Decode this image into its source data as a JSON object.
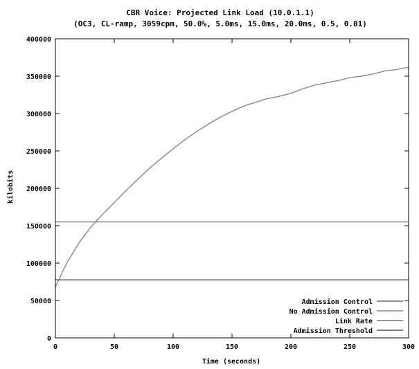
{
  "chart_data": {
    "type": "line",
    "title": "CBR Voice: Projected Link Load (10.0.1.1)",
    "subtitle": "(OC3, CL-ramp, 3059cpm, 50.0%, 5.0ms, 15.0ms, 20.0ms, 0.5, 0.01)",
    "xlabel": "Time (seconds)",
    "ylabel": "kilobits",
    "xlim": [
      0,
      300
    ],
    "ylim": [
      0,
      400000
    ],
    "xticks": [
      0,
      50,
      100,
      150,
      200,
      250,
      300
    ],
    "yticks": [
      0,
      50000,
      100000,
      150000,
      200000,
      250000,
      300000,
      350000,
      400000
    ],
    "grid": false,
    "legend_position": "bottom-right",
    "series": [
      {
        "name": "Admission Control",
        "color": "#666666",
        "x": [
          0,
          3,
          6,
          300
        ],
        "y": [
          78000,
          77500,
          77500,
          77500
        ]
      },
      {
        "name": "No Admission Control",
        "color": "#888888",
        "x": [
          0,
          5,
          10,
          20,
          30,
          40,
          50,
          60,
          70,
          80,
          90,
          100,
          110,
          120,
          130,
          140,
          150,
          160,
          170,
          180,
          190,
          200,
          210,
          220,
          230,
          240,
          250,
          260,
          270,
          280,
          290,
          300
        ],
        "y": [
          68000,
          85000,
          101000,
          127000,
          148000,
          165000,
          181000,
          197000,
          212000,
          227000,
          240000,
          253000,
          265000,
          276000,
          286000,
          295000,
          303000,
          310000,
          315000,
          320000,
          323000,
          327000,
          333000,
          338000,
          341000,
          344000,
          348000,
          350000,
          353000,
          357000,
          359000,
          362000
        ]
      },
      {
        "name": "Link Rate",
        "color": "#777777",
        "x": [
          0,
          300
        ],
        "y": [
          155000,
          155000
        ]
      },
      {
        "name": "Admission Threshold",
        "color": "#555555",
        "x": [
          0,
          300
        ],
        "y": [
          77500,
          77500
        ]
      }
    ]
  }
}
